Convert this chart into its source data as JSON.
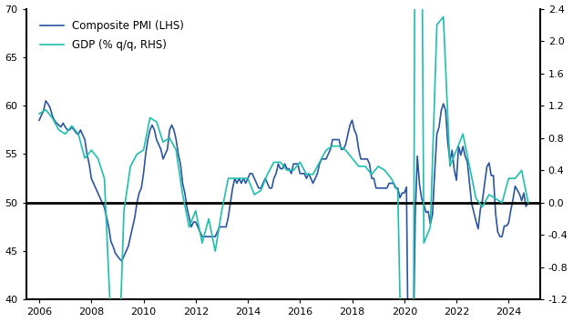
{
  "legend_entries": [
    "Composite PMI (LHS)",
    "GDP (% q/q, RHS)"
  ],
  "pmi_color": "#2955a3",
  "gdp_color": "#1dbfad",
  "hline_color": "black",
  "ylim_lhs": [
    40,
    70
  ],
  "ylim_rhs": [
    -1.2,
    2.4
  ],
  "yticks_lhs": [
    40,
    45,
    50,
    55,
    60,
    65,
    70
  ],
  "yticks_rhs": [
    -1.2,
    -0.8,
    -0.4,
    0.0,
    0.4,
    0.8,
    1.2,
    1.6,
    2.0,
    2.4
  ],
  "xticks": [
    2006,
    2008,
    2010,
    2012,
    2014,
    2016,
    2018,
    2020,
    2022,
    2024
  ],
  "xlim": [
    2005.5,
    2025.2
  ],
  "background_color": "#ffffff",
  "pmi_data": [
    [
      2006.0,
      58.5
    ],
    [
      2006.083,
      59.0
    ],
    [
      2006.167,
      59.5
    ],
    [
      2006.25,
      60.5
    ],
    [
      2006.333,
      60.2
    ],
    [
      2006.417,
      59.8
    ],
    [
      2006.5,
      59.0
    ],
    [
      2006.583,
      58.5
    ],
    [
      2006.667,
      58.2
    ],
    [
      2006.75,
      58.0
    ],
    [
      2006.833,
      57.8
    ],
    [
      2006.917,
      58.2
    ],
    [
      2007.0,
      57.8
    ],
    [
      2007.083,
      57.5
    ],
    [
      2007.167,
      57.5
    ],
    [
      2007.25,
      57.8
    ],
    [
      2007.333,
      57.5
    ],
    [
      2007.417,
      57.2
    ],
    [
      2007.5,
      57.0
    ],
    [
      2007.583,
      57.5
    ],
    [
      2007.667,
      57.0
    ],
    [
      2007.75,
      56.5
    ],
    [
      2007.833,
      55.0
    ],
    [
      2007.917,
      54.0
    ],
    [
      2008.0,
      52.5
    ],
    [
      2008.083,
      52.0
    ],
    [
      2008.167,
      51.5
    ],
    [
      2008.25,
      51.0
    ],
    [
      2008.333,
      50.5
    ],
    [
      2008.417,
      50.0
    ],
    [
      2008.5,
      49.5
    ],
    [
      2008.583,
      48.5
    ],
    [
      2008.667,
      47.5
    ],
    [
      2008.75,
      46.0
    ],
    [
      2008.833,
      45.5
    ],
    [
      2008.917,
      44.8
    ],
    [
      2009.0,
      44.5
    ],
    [
      2009.083,
      44.2
    ],
    [
      2009.167,
      44.0
    ],
    [
      2009.25,
      44.5
    ],
    [
      2009.333,
      45.0
    ],
    [
      2009.417,
      45.5
    ],
    [
      2009.5,
      46.5
    ],
    [
      2009.583,
      47.5
    ],
    [
      2009.667,
      48.5
    ],
    [
      2009.75,
      50.0
    ],
    [
      2009.833,
      51.0
    ],
    [
      2009.917,
      51.5
    ],
    [
      2010.0,
      53.0
    ],
    [
      2010.083,
      55.0
    ],
    [
      2010.167,
      56.5
    ],
    [
      2010.25,
      57.5
    ],
    [
      2010.333,
      58.0
    ],
    [
      2010.417,
      57.5
    ],
    [
      2010.5,
      56.5
    ],
    [
      2010.583,
      56.0
    ],
    [
      2010.667,
      55.5
    ],
    [
      2010.75,
      54.5
    ],
    [
      2010.833,
      55.0
    ],
    [
      2010.917,
      55.5
    ],
    [
      2011.0,
      57.5
    ],
    [
      2011.083,
      58.0
    ],
    [
      2011.167,
      57.5
    ],
    [
      2011.25,
      56.5
    ],
    [
      2011.333,
      55.0
    ],
    [
      2011.417,
      54.0
    ],
    [
      2011.5,
      52.0
    ],
    [
      2011.583,
      51.0
    ],
    [
      2011.667,
      49.5
    ],
    [
      2011.75,
      48.5
    ],
    [
      2011.833,
      47.5
    ],
    [
      2011.917,
      48.0
    ],
    [
      2012.0,
      48.0
    ],
    [
      2012.083,
      47.5
    ],
    [
      2012.167,
      47.0
    ],
    [
      2012.25,
      46.5
    ],
    [
      2012.333,
      46.5
    ],
    [
      2012.417,
      46.5
    ],
    [
      2012.5,
      46.5
    ],
    [
      2012.583,
      46.5
    ],
    [
      2012.667,
      46.5
    ],
    [
      2012.75,
      46.5
    ],
    [
      2012.833,
      47.0
    ],
    [
      2012.917,
      47.5
    ],
    [
      2013.0,
      47.5
    ],
    [
      2013.083,
      47.5
    ],
    [
      2013.167,
      47.5
    ],
    [
      2013.25,
      48.5
    ],
    [
      2013.333,
      50.0
    ],
    [
      2013.417,
      51.5
    ],
    [
      2013.5,
      52.5
    ],
    [
      2013.583,
      52.0
    ],
    [
      2013.667,
      52.5
    ],
    [
      2013.75,
      52.0
    ],
    [
      2013.833,
      52.5
    ],
    [
      2013.917,
      52.0
    ],
    [
      2014.0,
      52.5
    ],
    [
      2014.083,
      53.0
    ],
    [
      2014.167,
      53.0
    ],
    [
      2014.25,
      52.5
    ],
    [
      2014.333,
      52.0
    ],
    [
      2014.417,
      51.5
    ],
    [
      2014.5,
      51.5
    ],
    [
      2014.583,
      52.0
    ],
    [
      2014.667,
      52.5
    ],
    [
      2014.75,
      52.0
    ],
    [
      2014.833,
      51.5
    ],
    [
      2014.917,
      51.5
    ],
    [
      2015.0,
      52.5
    ],
    [
      2015.083,
      53.0
    ],
    [
      2015.167,
      54.0
    ],
    [
      2015.25,
      53.5
    ],
    [
      2015.333,
      53.5
    ],
    [
      2015.417,
      54.0
    ],
    [
      2015.5,
      53.5
    ],
    [
      2015.583,
      53.5
    ],
    [
      2015.667,
      53.0
    ],
    [
      2015.75,
      54.0
    ],
    [
      2015.833,
      54.0
    ],
    [
      2015.917,
      54.0
    ],
    [
      2016.0,
      53.0
    ],
    [
      2016.083,
      53.0
    ],
    [
      2016.167,
      53.0
    ],
    [
      2016.25,
      52.5
    ],
    [
      2016.333,
      53.0
    ],
    [
      2016.417,
      52.5
    ],
    [
      2016.5,
      52.0
    ],
    [
      2016.583,
      52.5
    ],
    [
      2016.667,
      53.0
    ],
    [
      2016.75,
      54.0
    ],
    [
      2016.833,
      54.5
    ],
    [
      2016.917,
      54.5
    ],
    [
      2017.0,
      54.5
    ],
    [
      2017.083,
      55.0
    ],
    [
      2017.167,
      55.5
    ],
    [
      2017.25,
      56.5
    ],
    [
      2017.333,
      56.5
    ],
    [
      2017.417,
      56.5
    ],
    [
      2017.5,
      56.5
    ],
    [
      2017.583,
      55.5
    ],
    [
      2017.667,
      55.5
    ],
    [
      2017.75,
      56.0
    ],
    [
      2017.833,
      57.0
    ],
    [
      2017.917,
      58.0
    ],
    [
      2018.0,
      58.5
    ],
    [
      2018.083,
      57.5
    ],
    [
      2018.167,
      57.0
    ],
    [
      2018.25,
      55.5
    ],
    [
      2018.333,
      54.5
    ],
    [
      2018.417,
      54.5
    ],
    [
      2018.5,
      54.5
    ],
    [
      2018.583,
      54.5
    ],
    [
      2018.667,
      54.0
    ],
    [
      2018.75,
      52.5
    ],
    [
      2018.833,
      52.5
    ],
    [
      2018.917,
      51.5
    ],
    [
      2019.0,
      51.5
    ],
    [
      2019.083,
      51.5
    ],
    [
      2019.167,
      51.5
    ],
    [
      2019.25,
      51.5
    ],
    [
      2019.333,
      51.5
    ],
    [
      2019.417,
      52.0
    ],
    [
      2019.5,
      52.0
    ],
    [
      2019.583,
      52.0
    ],
    [
      2019.667,
      51.5
    ],
    [
      2019.75,
      51.5
    ],
    [
      2019.833,
      50.5
    ],
    [
      2019.917,
      51.0
    ],
    [
      2020.0,
      51.0
    ],
    [
      2020.083,
      51.6
    ],
    [
      2020.167,
      29.7
    ],
    [
      2020.25,
      13.6
    ],
    [
      2020.333,
      31.9
    ],
    [
      2020.417,
      48.5
    ],
    [
      2020.5,
      54.8
    ],
    [
      2020.583,
      51.9
    ],
    [
      2020.667,
      50.4
    ],
    [
      2020.75,
      49.8
    ],
    [
      2020.833,
      49.0
    ],
    [
      2020.917,
      49.1
    ],
    [
      2021.0,
      47.8
    ],
    [
      2021.083,
      48.8
    ],
    [
      2021.167,
      53.2
    ],
    [
      2021.25,
      57.1
    ],
    [
      2021.333,
      57.8
    ],
    [
      2021.417,
      59.5
    ],
    [
      2021.5,
      60.2
    ],
    [
      2021.583,
      59.5
    ],
    [
      2021.667,
      56.2
    ],
    [
      2021.75,
      54.3
    ],
    [
      2021.833,
      55.4
    ],
    [
      2021.917,
      53.4
    ],
    [
      2022.0,
      52.3
    ],
    [
      2022.083,
      55.8
    ],
    [
      2022.167,
      54.9
    ],
    [
      2022.25,
      55.8
    ],
    [
      2022.333,
      54.8
    ],
    [
      2022.417,
      54.2
    ],
    [
      2022.5,
      52.0
    ],
    [
      2022.583,
      49.9
    ],
    [
      2022.667,
      49.0
    ],
    [
      2022.75,
      48.1
    ],
    [
      2022.833,
      47.3
    ],
    [
      2022.917,
      49.3
    ],
    [
      2023.0,
      50.3
    ],
    [
      2023.083,
      52.0
    ],
    [
      2023.167,
      53.7
    ],
    [
      2023.25,
      54.1
    ],
    [
      2023.333,
      52.8
    ],
    [
      2023.417,
      52.8
    ],
    [
      2023.5,
      48.9
    ],
    [
      2023.583,
      47.0
    ],
    [
      2023.667,
      46.5
    ],
    [
      2023.75,
      46.5
    ],
    [
      2023.833,
      47.6
    ],
    [
      2023.917,
      47.6
    ],
    [
      2024.0,
      47.9
    ],
    [
      2024.083,
      49.2
    ],
    [
      2024.167,
      50.3
    ],
    [
      2024.25,
      51.7
    ],
    [
      2024.333,
      51.3
    ],
    [
      2024.417,
      50.9
    ],
    [
      2024.5,
      50.2
    ],
    [
      2024.583,
      51.0
    ],
    [
      2024.667,
      49.6
    ],
    [
      2024.75,
      50.0
    ]
  ],
  "gdp_data": [
    [
      2006.0,
      1.1
    ],
    [
      2006.25,
      1.15
    ],
    [
      2006.5,
      1.05
    ],
    [
      2006.75,
      0.9
    ],
    [
      2007.0,
      0.85
    ],
    [
      2007.25,
      0.95
    ],
    [
      2007.5,
      0.85
    ],
    [
      2007.75,
      0.55
    ],
    [
      2008.0,
      0.65
    ],
    [
      2008.25,
      0.55
    ],
    [
      2008.5,
      0.3
    ],
    [
      2008.75,
      -1.5
    ],
    [
      2009.0,
      -2.5
    ],
    [
      2009.25,
      -0.1
    ],
    [
      2009.5,
      0.45
    ],
    [
      2009.75,
      0.6
    ],
    [
      2010.0,
      0.65
    ],
    [
      2010.25,
      1.05
    ],
    [
      2010.5,
      1.0
    ],
    [
      2010.75,
      0.75
    ],
    [
      2011.0,
      0.8
    ],
    [
      2011.25,
      0.65
    ],
    [
      2011.5,
      0.1
    ],
    [
      2011.75,
      -0.3
    ],
    [
      2012.0,
      -0.1
    ],
    [
      2012.25,
      -0.5
    ],
    [
      2012.5,
      -0.2
    ],
    [
      2012.75,
      -0.6
    ],
    [
      2013.0,
      -0.1
    ],
    [
      2013.25,
      0.3
    ],
    [
      2013.5,
      0.3
    ],
    [
      2013.75,
      0.3
    ],
    [
      2014.0,
      0.3
    ],
    [
      2014.25,
      0.1
    ],
    [
      2014.5,
      0.15
    ],
    [
      2014.75,
      0.35
    ],
    [
      2015.0,
      0.5
    ],
    [
      2015.25,
      0.5
    ],
    [
      2015.5,
      0.4
    ],
    [
      2015.75,
      0.4
    ],
    [
      2016.0,
      0.5
    ],
    [
      2016.25,
      0.35
    ],
    [
      2016.5,
      0.35
    ],
    [
      2016.75,
      0.5
    ],
    [
      2017.0,
      0.65
    ],
    [
      2017.25,
      0.7
    ],
    [
      2017.5,
      0.7
    ],
    [
      2017.75,
      0.65
    ],
    [
      2018.0,
      0.55
    ],
    [
      2018.25,
      0.45
    ],
    [
      2018.5,
      0.45
    ],
    [
      2018.75,
      0.35
    ],
    [
      2019.0,
      0.45
    ],
    [
      2019.25,
      0.4
    ],
    [
      2019.5,
      0.3
    ],
    [
      2019.75,
      0.15
    ],
    [
      2020.0,
      -3.8
    ],
    [
      2020.25,
      -11.8
    ],
    [
      2020.5,
      12.5
    ],
    [
      2020.75,
      -0.5
    ],
    [
      2021.0,
      -0.3
    ],
    [
      2021.25,
      2.2
    ],
    [
      2021.5,
      2.3
    ],
    [
      2021.75,
      0.45
    ],
    [
      2022.0,
      0.65
    ],
    [
      2022.25,
      0.85
    ],
    [
      2022.5,
      0.45
    ],
    [
      2022.75,
      0.05
    ],
    [
      2023.0,
      -0.05
    ],
    [
      2023.25,
      0.1
    ],
    [
      2023.5,
      0.05
    ],
    [
      2023.75,
      0.0
    ],
    [
      2024.0,
      0.3
    ],
    [
      2024.25,
      0.3
    ],
    [
      2024.5,
      0.4
    ],
    [
      2024.75,
      0.0
    ]
  ]
}
